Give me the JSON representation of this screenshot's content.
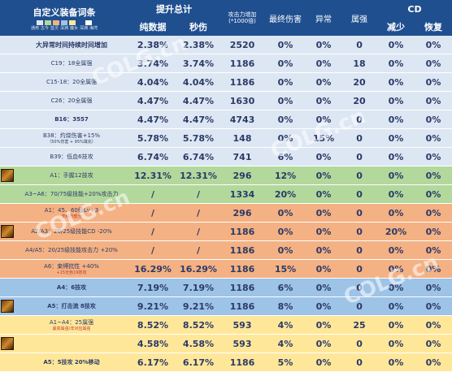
{
  "header": {
    "title": "自定义装备词条",
    "legend_colors": [
      "#dde7f3",
      "#b3d89c",
      "#f4b183",
      "#9dc3e6",
      "#ffe79a",
      "#1f4f8f",
      "#ffffff"
    ],
    "legend_labels": [
      "通用",
      "古今",
      "蓝灵",
      "深渊",
      "魔女",
      "深渊",
      "海湾"
    ],
    "group_total": "提升总计",
    "col_pure": "纯数据",
    "col_sec": "秒伤",
    "col_atk": "攻击力增加",
    "col_atk_sub": "(*1000倍)",
    "col_final": "最终伤害",
    "col_abnormal": "异常",
    "col_attr": "属强",
    "group_cd": "CD",
    "col_cd_reduce": "减少",
    "col_cd_recover": "恢复"
  },
  "rows": [
    {
      "band": "blue",
      "icon": false,
      "name": "大异常时间持续时间增加",
      "name_style": "big",
      "pure": "2.38%",
      "sec": "2.38%",
      "atk": "2520",
      "final": "0%",
      "abn": "0%",
      "attr": "0",
      "cd1": "0%",
      "cd2": "0%"
    },
    {
      "band": "blue",
      "icon": false,
      "name": "C19：18全属强",
      "pure": "3.74%",
      "sec": "3.74%",
      "atk": "1186",
      "final": "0%",
      "abn": "0%",
      "attr": "18",
      "cd1": "0%",
      "cd2": "0%"
    },
    {
      "band": "blue",
      "icon": false,
      "name": "C15-18：20全属强",
      "pure": "4.04%",
      "sec": "4.04%",
      "atk": "1186",
      "final": "0%",
      "abn": "0%",
      "attr": "20",
      "cd1": "0%",
      "cd2": "0%"
    },
    {
      "band": "blue",
      "icon": false,
      "name": "C26：20全属强",
      "pure": "4.47%",
      "sec": "4.47%",
      "atk": "1630",
      "final": "0%",
      "abn": "0%",
      "attr": "20",
      "cd1": "0%",
      "cd2": "0%"
    },
    {
      "band": "blue",
      "icon": false,
      "name": "B16：3557",
      "name_style": "bold",
      "pure": "4.47%",
      "sec": "4.47%",
      "atk": "4743",
      "final": "0%",
      "abn": "0%",
      "attr": "0",
      "cd1": "0%",
      "cd2": "0%"
    },
    {
      "band": "blue",
      "icon": false,
      "name": "B38：灼烧伤害+15%",
      "note": "（50%伤害 + 95%填充）",
      "note_blue": true,
      "pure": "5.78%",
      "sec": "5.78%",
      "atk": "148",
      "final": "0%",
      "abn": "15%",
      "attr": "0",
      "cd1": "0%",
      "cd2": "0%"
    },
    {
      "band": "blue",
      "icon": false,
      "name": "B39：低血6技攻",
      "pure": "6.74%",
      "sec": "6.74%",
      "atk": "741",
      "final": "6%",
      "abn": "0%",
      "attr": "0",
      "cd1": "0%",
      "cd2": "0%"
    },
    {
      "band": "green",
      "icon": true,
      "name": "A1：手握12技攻",
      "pure": "12.31%",
      "sec": "12.31%",
      "atk": "296",
      "final": "12%",
      "abn": "0%",
      "attr": "0",
      "cd1": "0%",
      "cd2": "0%"
    },
    {
      "band": "green",
      "icon": false,
      "name": "A3~A6：70/75级技能+20%攻击力",
      "pure": "/",
      "sec": "/",
      "atk": "1334",
      "final": "20%",
      "abn": "0%",
      "attr": "0",
      "cd1": "0%",
      "cd2": "0%"
    },
    {
      "band": "orange",
      "icon": false,
      "name": "A1：45、60级Lv+3",
      "note": "非纯伤部分",
      "pure": "/",
      "sec": "/",
      "atk": "296",
      "final": "0%",
      "abn": "0%",
      "attr": "0",
      "cd1": "0%",
      "cd2": "0%"
    },
    {
      "band": "orange",
      "icon": true,
      "name": "A2/A3：20/25级技能CD -20%",
      "pure": "/",
      "sec": "/",
      "atk": "1186",
      "final": "0%",
      "abn": "0%",
      "attr": "0",
      "cd1": "20%",
      "cd2": "0%"
    },
    {
      "band": "orange",
      "icon": false,
      "name": "A4/A5：20/25级技能攻击力 +20%",
      "pure": "/",
      "sec": "/",
      "atk": "1186",
      "final": "0%",
      "abn": "0%",
      "attr": "0",
      "cd1": "0%",
      "cd2": "0%"
    },
    {
      "band": "orange",
      "icon": false,
      "name": "A6：束缚抗性 +40%",
      "note": "+15无色19技攻",
      "pure": "16.29%",
      "sec": "16.29%",
      "atk": "1186",
      "final": "15%",
      "abn": "0%",
      "attr": "0",
      "cd1": "0%",
      "cd2": "0%"
    },
    {
      "band": "dblue",
      "icon": false,
      "name": "A4：6技攻",
      "name_style": "bold",
      "pure": "7.19%",
      "sec": "7.19%",
      "atk": "1186",
      "final": "6%",
      "abn": "0%",
      "attr": "0",
      "cd1": "0%",
      "cd2": "0%"
    },
    {
      "band": "dblue",
      "icon": true,
      "name": "A5：打击流 8技攻",
      "name_style": "bold",
      "pure": "9.21%",
      "sec": "9.21%",
      "atk": "1186",
      "final": "8%",
      "abn": "0%",
      "attr": "0",
      "cd1": "0%",
      "cd2": "0%"
    },
    {
      "band": "yellow",
      "icon": false,
      "name": "A1~A4：25属强",
      "note": "最高属强/非对应属强",
      "pure": "8.52%",
      "sec": "8.52%",
      "atk": "593",
      "final": "4%",
      "abn": "0%",
      "attr": "25",
      "cd1": "0%",
      "cd2": "0%"
    },
    {
      "band": "yellow",
      "icon": true,
      "name": "",
      "pure": "4.58%",
      "sec": "4.58%",
      "atk": "593",
      "final": "4%",
      "abn": "0%",
      "attr": "0",
      "cd1": "0%",
      "cd2": "0%"
    },
    {
      "band": "yellow",
      "icon": false,
      "name": "A5：5技攻 20%移动",
      "name_style": "bold",
      "pure": "6.17%",
      "sec": "6.17%",
      "atk": "1186",
      "final": "5%",
      "abn": "0%",
      "attr": "0",
      "cd1": "0%",
      "cd2": "0%"
    }
  ],
  "watermark": "COLG.cn"
}
